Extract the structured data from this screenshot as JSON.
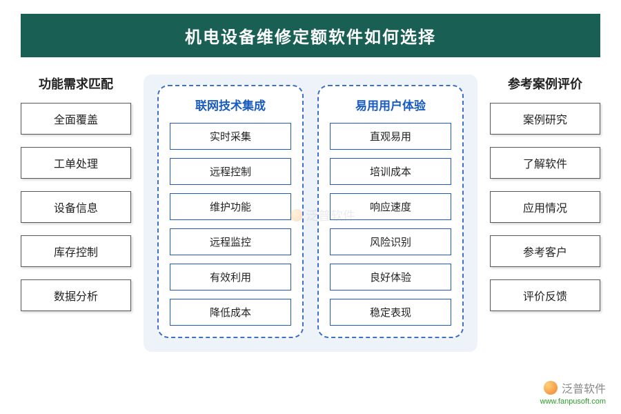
{
  "title": "机电设备维修定额软件如何选择",
  "colors": {
    "title_bg": "#1a5f54",
    "title_fg": "#ffffff",
    "center_bg": "#eef2f9",
    "dashed_border": "#3b6fc9",
    "center_head_fg": "#1a5bbf",
    "center_item_border": "#2058b8",
    "outer_box_border": "#555555",
    "text": "#222222"
  },
  "left": {
    "heading": "功能需求匹配",
    "items": [
      "全面覆盖",
      "工单处理",
      "设备信息",
      "库存控制",
      "数据分析"
    ]
  },
  "center": {
    "panels": [
      {
        "heading": "联网技术集成",
        "items": [
          "实时采集",
          "远程控制",
          "维护功能",
          "远程监控",
          "有效利用",
          "降低成本"
        ]
      },
      {
        "heading": "易用用户体验",
        "items": [
          "直观易用",
          "培训成本",
          "响应速度",
          "风险识别",
          "良好体验",
          "稳定表现"
        ]
      }
    ]
  },
  "right": {
    "heading": "参考案例评价",
    "items": [
      "案例研究",
      "了解软件",
      "应用情况",
      "参考客户",
      "评价反馈"
    ]
  },
  "watermark": {
    "brand": "泛普软件",
    "url": "www.fanpusoft.com"
  }
}
